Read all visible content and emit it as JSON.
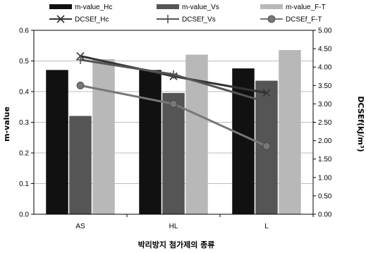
{
  "chart_data": {
    "type": "bar",
    "categories": [
      "AS",
      "HL",
      "L"
    ],
    "xlabel": "박리방지 첨가제의 종류",
    "ylabel": "m-value",
    "y2label": "DCSEf(kJ/m³)",
    "ylim": [
      0,
      0.6
    ],
    "y2lim": [
      0,
      5
    ],
    "yticks": [
      "0.0",
      "0.1",
      "0.2",
      "0.3",
      "0.4",
      "0.5",
      "0.6"
    ],
    "y2ticks": [
      "0.00",
      "0.50",
      "1.00",
      "1.50",
      "2.00",
      "2.50",
      "3.00",
      "3.50",
      "4.00",
      "4.50",
      "5.00"
    ],
    "grid": true,
    "legend_position": "top",
    "bar_series": [
      {
        "name": "m-value_Hc",
        "values": [
          0.47,
          0.47,
          0.475
        ],
        "color": "#111111"
      },
      {
        "name": "m-value_Vs",
        "values": [
          0.32,
          0.395,
          0.435
        ],
        "color": "#555555"
      },
      {
        "name": "m-value_F-T",
        "values": [
          0.505,
          0.52,
          0.535
        ],
        "color": "#b8b8b8"
      }
    ],
    "line_series": [
      {
        "name": "DCSEf_Hc",
        "values": [
          4.3,
          3.75,
          3.3
        ],
        "color": "#333333",
        "marker": "x"
      },
      {
        "name": "DCSEf_Vs",
        "values": [
          4.2,
          3.8,
          3.05
        ],
        "color": "#555555",
        "marker": "plus"
      },
      {
        "name": "DCSEf_F-T",
        "values": [
          3.5,
          3.0,
          1.85
        ],
        "color": "#777777",
        "marker": "circle"
      }
    ]
  }
}
